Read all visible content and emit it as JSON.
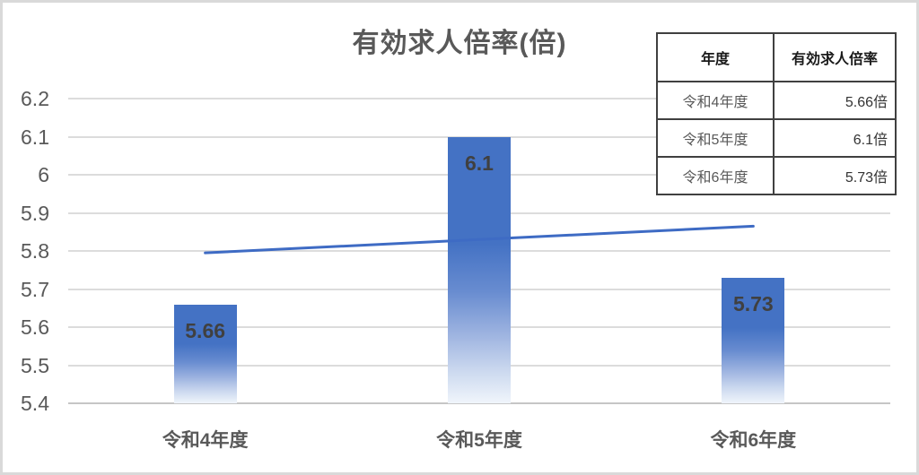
{
  "title": "有効求人倍率(倍)",
  "table": {
    "headers": {
      "year": "年度",
      "rate": "有効求人倍率"
    },
    "rows": [
      {
        "year": "令和4年度",
        "value": "5.66倍"
      },
      {
        "year": "令和5年度",
        "value": "6.1倍"
      },
      {
        "year": "令和6年度",
        "value": "5.73倍"
      }
    ]
  },
  "chart_data": {
    "type": "bar",
    "title": "有効求人倍率(倍)",
    "categories": [
      "令和4年度",
      "令和5年度",
      "令和6年度"
    ],
    "values": [
      5.66,
      6.1,
      5.73
    ],
    "data_labels": [
      "5.66",
      "6.1",
      "5.73"
    ],
    "y_ticks": [
      "6.2",
      "6.1",
      "6",
      "5.9",
      "5.8",
      "5.7",
      "5.6",
      "5.5",
      "5.4"
    ],
    "ylim": [
      5.4,
      6.2
    ],
    "xlabel": "",
    "ylabel": "",
    "grid": true,
    "legend": "none",
    "trendline": {
      "type": "linear",
      "start_value": 5.795,
      "end_value": 5.865
    },
    "colors": {
      "bar_top": "#4472c4",
      "bar_fade_bottom": "#f0f5fb",
      "trend_line": "#3e6bc4",
      "gridline": "#dcdcdc",
      "axis_line": "#c6c6c6",
      "title_text": "#595959",
      "tick_text": "#595959",
      "data_label_text": "#404040"
    }
  }
}
